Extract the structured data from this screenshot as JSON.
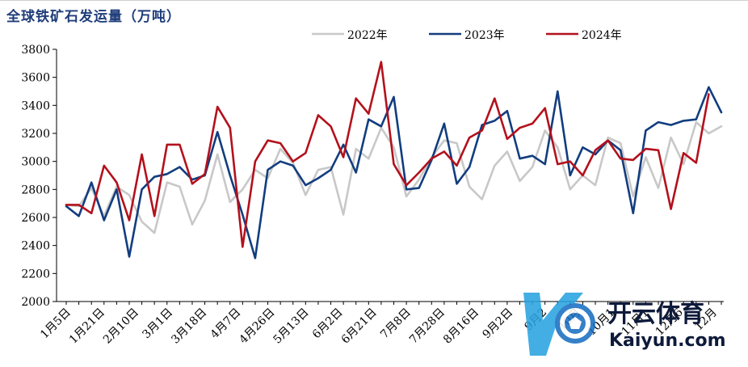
{
  "title": "全球铁矿石发运量（万吨）",
  "watermark": {
    "brand": "开云体育",
    "domain": "Kaiyun.com"
  },
  "colors": {
    "y2022": "#c8c8c8",
    "y2023": "#123d7f",
    "y2024": "#b3111c",
    "title": "#1f3d7a"
  },
  "chart_data": {
    "type": "line",
    "title": "全球铁矿石发运量（万吨）",
    "ylim": [
      2000,
      3800
    ],
    "yticks": [
      2000,
      2200,
      2400,
      2600,
      2800,
      3000,
      3200,
      3400,
      3600,
      3800
    ],
    "xtick_labels": [
      "1月5日",
      "1月21日",
      "2月10日",
      "3月1日",
      "3月18日",
      "4月7日",
      "4月26日",
      "5月13日",
      "6月2日",
      "6月21日",
      "7月8日",
      "7月28日",
      "8月16日",
      "9月2日",
      "9月2",
      "10月",
      "10月1",
      "11月1",
      "12月6",
      "12月"
    ],
    "legend_position": "top",
    "grid": false,
    "series": [
      {
        "name": "2022年",
        "color": "#c8c8c8",
        "values": [
          2690,
          2680,
          2810,
          2610,
          2820,
          2760,
          2570,
          2490,
          2850,
          2820,
          2550,
          2720,
          3050,
          2710,
          2800,
          2940,
          2880,
          3090,
          2990,
          2760,
          2940,
          2960,
          2620,
          3090,
          3020,
          3240,
          3100,
          2750,
          2870,
          3030,
          3150,
          3130,
          2820,
          2730,
          2970,
          3070,
          2860,
          2960,
          3220,
          3100,
          2800,
          2900,
          2830,
          3170,
          3130,
          2750,
          3030,
          2810,
          3170,
          2980,
          3280,
          3200,
          3250
        ]
      },
      {
        "name": "2023年",
        "color": "#123d7f",
        "values": [
          2680,
          2610,
          2850,
          2580,
          2800,
          2320,
          2800,
          2890,
          2910,
          2960,
          2870,
          2900,
          3210,
          2900,
          2620,
          2310,
          2940,
          3000,
          2970,
          2830,
          2880,
          2940,
          3120,
          2920,
          3300,
          3250,
          3460,
          2800,
          2810,
          3010,
          3270,
          2840,
          2960,
          3260,
          3290,
          3360,
          3020,
          3040,
          2980,
          3500,
          2900,
          3100,
          3050,
          3150,
          3080,
          2630,
          3220,
          3280,
          3260,
          3290,
          3300,
          3530,
          3350
        ]
      },
      {
        "name": "2024年",
        "color": "#b3111c",
        "values": [
          2690,
          2690,
          2630,
          2970,
          2850,
          2580,
          3050,
          2610,
          3120,
          3120,
          2840,
          2910,
          3390,
          3240,
          2390,
          3000,
          3150,
          3130,
          3000,
          3060,
          3330,
          3250,
          3030,
          3450,
          3340,
          3710,
          2980,
          2830,
          2920,
          3020,
          3070,
          2970,
          3170,
          3220,
          3450,
          3160,
          3240,
          3270,
          3380,
          2980,
          3000,
          2900,
          3080,
          3150,
          3020,
          3010,
          3090,
          3080,
          2660,
          3060,
          2990,
          3480
        ]
      }
    ]
  }
}
